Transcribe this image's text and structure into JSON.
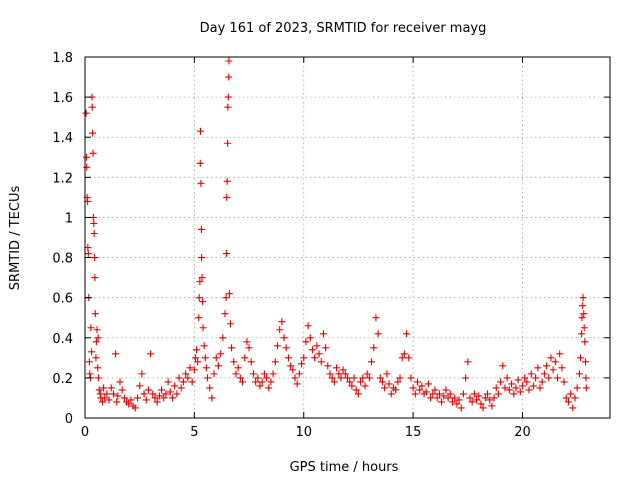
{
  "chart_data": {
    "type": "scatter",
    "title": "Day 161 of 2023, SRMTID for receiver mayg",
    "xlabel": "GPS time / hours",
    "ylabel": "SRMTID / TECUs",
    "xlim": [
      0,
      24
    ],
    "ylim": [
      0,
      1.8
    ],
    "x_ticks": [
      0,
      5,
      10,
      15,
      20
    ],
    "x_tick_labels": [
      "0",
      "5",
      "10",
      "15",
      "20"
    ],
    "y_ticks": [
      0,
      0.2,
      0.4,
      0.6,
      0.8,
      1.0,
      1.2,
      1.4,
      1.6,
      1.8
    ],
    "y_tick_labels": [
      "0",
      "0.2",
      "0.4",
      "0.6",
      "0.8",
      "1",
      "1.2",
      "1.4",
      "1.6",
      "1.8"
    ],
    "grid": true,
    "marker": "+",
    "color": "#e00000",
    "series": [
      {
        "name": "SRMTID",
        "points": [
          [
            0.05,
            1.52
          ],
          [
            0.07,
            1.3
          ],
          [
            0.08,
            1.25
          ],
          [
            0.1,
            1.1
          ],
          [
            0.12,
            1.08
          ],
          [
            0.13,
            0.85
          ],
          [
            0.15,
            0.82
          ],
          [
            0.17,
            0.6
          ],
          [
            0.2,
            0.28
          ],
          [
            0.22,
            0.22
          ],
          [
            0.25,
            0.2
          ],
          [
            0.27,
            0.45
          ],
          [
            0.3,
            0.33
          ],
          [
            0.32,
            1.6
          ],
          [
            0.33,
            1.55
          ],
          [
            0.35,
            1.42
          ],
          [
            0.37,
            1.32
          ],
          [
            0.38,
            1.0
          ],
          [
            0.4,
            0.97
          ],
          [
            0.42,
            0.92
          ],
          [
            0.44,
            0.8
          ],
          [
            0.45,
            0.7
          ],
          [
            0.47,
            0.52
          ],
          [
            0.5,
            0.3
          ],
          [
            0.52,
            0.38
          ],
          [
            0.55,
            0.44
          ],
          [
            0.58,
            0.25
          ],
          [
            0.6,
            0.4
          ],
          [
            0.62,
            0.2
          ],
          [
            0.65,
            0.14
          ],
          [
            0.7,
            0.12
          ],
          [
            0.72,
            0.1
          ],
          [
            0.8,
            0.08
          ],
          [
            0.85,
            0.15
          ],
          [
            0.9,
            0.1
          ],
          [
            1.0,
            0.12
          ],
          [
            1.1,
            0.09
          ],
          [
            1.2,
            0.15
          ],
          [
            1.3,
            0.12
          ],
          [
            1.4,
            0.32
          ],
          [
            1.45,
            0.08
          ],
          [
            1.5,
            0.11
          ],
          [
            1.6,
            0.18
          ],
          [
            1.7,
            0.14
          ],
          [
            1.8,
            0.1
          ],
          [
            1.9,
            0.08
          ],
          [
            2.0,
            0.07
          ],
          [
            2.1,
            0.09
          ],
          [
            2.2,
            0.06
          ],
          [
            2.3,
            0.05
          ],
          [
            2.4,
            0.1
          ],
          [
            2.5,
            0.16
          ],
          [
            2.6,
            0.22
          ],
          [
            2.7,
            0.12
          ],
          [
            2.8,
            0.09
          ],
          [
            2.9,
            0.14
          ],
          [
            3.0,
            0.32
          ],
          [
            3.1,
            0.12
          ],
          [
            3.2,
            0.1
          ],
          [
            3.3,
            0.08
          ],
          [
            3.4,
            0.11
          ],
          [
            3.5,
            0.14
          ],
          [
            3.6,
            0.1
          ],
          [
            3.7,
            0.12
          ],
          [
            3.8,
            0.18
          ],
          [
            3.9,
            0.13
          ],
          [
            4.0,
            0.1
          ],
          [
            4.1,
            0.16
          ],
          [
            4.2,
            0.12
          ],
          [
            4.3,
            0.2
          ],
          [
            4.4,
            0.15
          ],
          [
            4.5,
            0.18
          ],
          [
            4.6,
            0.22
          ],
          [
            4.7,
            0.2
          ],
          [
            4.8,
            0.25
          ],
          [
            4.9,
            0.18
          ],
          [
            5.0,
            0.24
          ],
          [
            5.05,
            0.3
          ],
          [
            5.1,
            0.34
          ],
          [
            5.15,
            0.28
          ],
          [
            5.2,
            0.5
          ],
          [
            5.22,
            0.6
          ],
          [
            5.25,
            0.68
          ],
          [
            5.27,
            1.27
          ],
          [
            5.28,
            1.43
          ],
          [
            5.3,
            1.17
          ],
          [
            5.32,
            0.94
          ],
          [
            5.33,
            0.8
          ],
          [
            5.35,
            0.7
          ],
          [
            5.38,
            0.58
          ],
          [
            5.4,
            0.45
          ],
          [
            5.45,
            0.36
          ],
          [
            5.5,
            0.3
          ],
          [
            5.55,
            0.25
          ],
          [
            5.6,
            0.2
          ],
          [
            5.7,
            0.15
          ],
          [
            5.8,
            0.1
          ],
          [
            5.9,
            0.22
          ],
          [
            6.0,
            0.3
          ],
          [
            6.1,
            0.26
          ],
          [
            6.2,
            0.32
          ],
          [
            6.3,
            0.4
          ],
          [
            6.4,
            0.52
          ],
          [
            6.45,
            0.6
          ],
          [
            6.47,
            0.82
          ],
          [
            6.48,
            1.1
          ],
          [
            6.5,
            1.18
          ],
          [
            6.52,
            1.37
          ],
          [
            6.53,
            1.55
          ],
          [
            6.55,
            1.6
          ],
          [
            6.57,
            1.7
          ],
          [
            6.58,
            1.78
          ],
          [
            6.6,
            0.62
          ],
          [
            6.65,
            0.47
          ],
          [
            6.7,
            0.35
          ],
          [
            6.8,
            0.28
          ],
          [
            6.9,
            0.22
          ],
          [
            7.0,
            0.25
          ],
          [
            7.1,
            0.2
          ],
          [
            7.2,
            0.18
          ],
          [
            7.3,
            0.3
          ],
          [
            7.4,
            0.38
          ],
          [
            7.5,
            0.35
          ],
          [
            7.6,
            0.28
          ],
          [
            7.7,
            0.22
          ],
          [
            7.8,
            0.18
          ],
          [
            7.9,
            0.2
          ],
          [
            8.0,
            0.16
          ],
          [
            8.1,
            0.18
          ],
          [
            8.2,
            0.22
          ],
          [
            8.3,
            0.2
          ],
          [
            8.4,
            0.15
          ],
          [
            8.5,
            0.18
          ],
          [
            8.6,
            0.22
          ],
          [
            8.7,
            0.28
          ],
          [
            8.8,
            0.36
          ],
          [
            8.9,
            0.44
          ],
          [
            9.0,
            0.48
          ],
          [
            9.1,
            0.4
          ],
          [
            9.2,
            0.35
          ],
          [
            9.3,
            0.3
          ],
          [
            9.4,
            0.26
          ],
          [
            9.5,
            0.24
          ],
          [
            9.6,
            0.2
          ],
          [
            9.7,
            0.17
          ],
          [
            9.8,
            0.22
          ],
          [
            9.9,
            0.27
          ],
          [
            10.0,
            0.3
          ],
          [
            10.1,
            0.38
          ],
          [
            10.2,
            0.46
          ],
          [
            10.3,
            0.4
          ],
          [
            10.4,
            0.34
          ],
          [
            10.5,
            0.3
          ],
          [
            10.6,
            0.36
          ],
          [
            10.7,
            0.32
          ],
          [
            10.8,
            0.28
          ],
          [
            10.9,
            0.42
          ],
          [
            11.0,
            0.35
          ],
          [
            11.1,
            0.26
          ],
          [
            11.2,
            0.22
          ],
          [
            11.3,
            0.2
          ],
          [
            11.4,
            0.18
          ],
          [
            11.5,
            0.25
          ],
          [
            11.6,
            0.22
          ],
          [
            11.7,
            0.2
          ],
          [
            11.8,
            0.24
          ],
          [
            11.9,
            0.22
          ],
          [
            12.0,
            0.2
          ],
          [
            12.1,
            0.18
          ],
          [
            12.2,
            0.16
          ],
          [
            12.3,
            0.2
          ],
          [
            12.4,
            0.14
          ],
          [
            12.5,
            0.12
          ],
          [
            12.6,
            0.18
          ],
          [
            12.7,
            0.2
          ],
          [
            12.8,
            0.16
          ],
          [
            12.9,
            0.22
          ],
          [
            13.0,
            0.2
          ],
          [
            13.1,
            0.28
          ],
          [
            13.2,
            0.35
          ],
          [
            13.3,
            0.5
          ],
          [
            13.4,
            0.42
          ],
          [
            13.5,
            0.2
          ],
          [
            13.6,
            0.18
          ],
          [
            13.7,
            0.15
          ],
          [
            13.8,
            0.22
          ],
          [
            13.9,
            0.17
          ],
          [
            14.0,
            0.12
          ],
          [
            14.1,
            0.15
          ],
          [
            14.2,
            0.14
          ],
          [
            14.3,
            0.18
          ],
          [
            14.4,
            0.2
          ],
          [
            14.5,
            0.3
          ],
          [
            14.6,
            0.32
          ],
          [
            14.7,
            0.42
          ],
          [
            14.8,
            0.3
          ],
          [
            14.9,
            0.2
          ],
          [
            15.0,
            0.15
          ],
          [
            15.1,
            0.12
          ],
          [
            15.2,
            0.18
          ],
          [
            15.3,
            0.14
          ],
          [
            15.4,
            0.16
          ],
          [
            15.5,
            0.12
          ],
          [
            15.6,
            0.13
          ],
          [
            15.7,
            0.17
          ],
          [
            15.8,
            0.1
          ],
          [
            15.9,
            0.12
          ],
          [
            16.0,
            0.14
          ],
          [
            16.1,
            0.1
          ],
          [
            16.2,
            0.12
          ],
          [
            16.3,
            0.08
          ],
          [
            16.4,
            0.11
          ],
          [
            16.5,
            0.14
          ],
          [
            16.6,
            0.1
          ],
          [
            16.7,
            0.12
          ],
          [
            16.8,
            0.08
          ],
          [
            16.9,
            0.1
          ],
          [
            17.0,
            0.07
          ],
          [
            17.1,
            0.09
          ],
          [
            17.2,
            0.05
          ],
          [
            17.3,
            0.12
          ],
          [
            17.4,
            0.2
          ],
          [
            17.5,
            0.28
          ],
          [
            17.6,
            0.1
          ],
          [
            17.7,
            0.08
          ],
          [
            17.8,
            0.12
          ],
          [
            17.9,
            0.09
          ],
          [
            18.0,
            0.11
          ],
          [
            18.1,
            0.07
          ],
          [
            18.2,
            0.05
          ],
          [
            18.3,
            0.1
          ],
          [
            18.4,
            0.12
          ],
          [
            18.5,
            0.09
          ],
          [
            18.6,
            0.06
          ],
          [
            18.7,
            0.1
          ],
          [
            18.8,
            0.15
          ],
          [
            18.9,
            0.12
          ],
          [
            19.0,
            0.18
          ],
          [
            19.1,
            0.26
          ],
          [
            19.2,
            0.15
          ],
          [
            19.3,
            0.2
          ],
          [
            19.4,
            0.14
          ],
          [
            19.5,
            0.17
          ],
          [
            19.6,
            0.12
          ],
          [
            19.7,
            0.15
          ],
          [
            19.8,
            0.19
          ],
          [
            19.9,
            0.13
          ],
          [
            20.0,
            0.16
          ],
          [
            20.1,
            0.2
          ],
          [
            20.2,
            0.18
          ],
          [
            20.3,
            0.14
          ],
          [
            20.4,
            0.22
          ],
          [
            20.5,
            0.16
          ],
          [
            20.6,
            0.2
          ],
          [
            20.7,
            0.25
          ],
          [
            20.8,
            0.15
          ],
          [
            20.9,
            0.18
          ],
          [
            21.0,
            0.22
          ],
          [
            21.1,
            0.26
          ],
          [
            21.2,
            0.2
          ],
          [
            21.3,
            0.3
          ],
          [
            21.4,
            0.24
          ],
          [
            21.5,
            0.28
          ],
          [
            21.6,
            0.2
          ],
          [
            21.7,
            0.32
          ],
          [
            21.8,
            0.25
          ],
          [
            21.9,
            0.18
          ],
          [
            22.0,
            0.1
          ],
          [
            22.1,
            0.08
          ],
          [
            22.2,
            0.12
          ],
          [
            22.3,
            0.05
          ],
          [
            22.4,
            0.1
          ],
          [
            22.5,
            0.15
          ],
          [
            22.6,
            0.22
          ],
          [
            22.65,
            0.3
          ],
          [
            22.7,
            0.42
          ],
          [
            22.72,
            0.5
          ],
          [
            22.75,
            0.56
          ],
          [
            22.77,
            0.6
          ],
          [
            22.8,
            0.52
          ],
          [
            22.82,
            0.45
          ],
          [
            22.85,
            0.38
          ],
          [
            22.88,
            0.28
          ],
          [
            22.9,
            0.2
          ],
          [
            22.92,
            0.15
          ]
        ]
      }
    ]
  }
}
